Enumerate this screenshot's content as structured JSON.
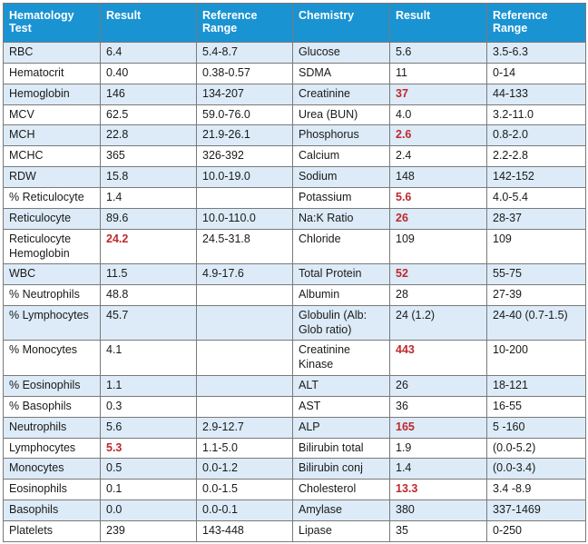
{
  "headers": {
    "hem_test": "Hematology Test",
    "hem_result": "Result",
    "hem_ref": "Reference Range",
    "chem_test": "Chemistry",
    "chem_result": "Result",
    "chem_ref": "Reference Range"
  },
  "rows": [
    {
      "hem": {
        "test": "RBC",
        "result": "6.4",
        "ref": "5.4-8.7"
      },
      "chem": {
        "test": "Glucose",
        "result": "5.6",
        "ref": "3.5-6.3"
      }
    },
    {
      "hem": {
        "test": "Hematocrit",
        "result": "0.40",
        "ref": "0.38-0.57"
      },
      "chem": {
        "test": "SDMA",
        "result": "11",
        "ref": "0-14"
      }
    },
    {
      "hem": {
        "test": "Hemoglobin",
        "result": "146",
        "ref": "134-207"
      },
      "chem": {
        "test": "Creatinine",
        "result": "37",
        "ref": "44-133",
        "abnormal": true
      }
    },
    {
      "hem": {
        "test": "MCV",
        "result": "62.5",
        "ref": "59.0-76.0"
      },
      "chem": {
        "test": "Urea (BUN)",
        "result": "4.0",
        "ref": "3.2-11.0"
      }
    },
    {
      "hem": {
        "test": "MCH",
        "result": "22.8",
        "ref": "21.9-26.1"
      },
      "chem": {
        "test": "Phosphorus",
        "result": "2.6",
        "ref": "0.8-2.0",
        "abnormal": true
      }
    },
    {
      "hem": {
        "test": "MCHC",
        "result": "365",
        "ref": "326-392"
      },
      "chem": {
        "test": "Calcium",
        "result": "2.4",
        "ref": "2.2-2.8"
      }
    },
    {
      "hem": {
        "test": "RDW",
        "result": "15.8",
        "ref": "10.0-19.0"
      },
      "chem": {
        "test": "Sodium",
        "result": "148",
        "ref": "142-152"
      }
    },
    {
      "hem": {
        "test": "% Reticulocyte",
        "result": "1.4",
        "ref": ""
      },
      "chem": {
        "test": "Potassium",
        "result": "5.6",
        "ref": "4.0-5.4",
        "abnormal": true
      }
    },
    {
      "hem": {
        "test": "Reticulocyte",
        "result": "89.6",
        "ref": "10.0-110.0"
      },
      "chem": {
        "test": "Na:K Ratio",
        "result": "26",
        "ref": "28-37",
        "abnormal": true
      }
    },
    {
      "hem": {
        "test": "Reticulocyte Hemoglobin",
        "result": "24.2",
        "ref": "24.5-31.8",
        "abnormal": true
      },
      "chem": {
        "test": "Chloride",
        "result": "109",
        "ref": "109"
      }
    },
    {
      "hem": {
        "test": "WBC",
        "result": "11.5",
        "ref": "4.9-17.6"
      },
      "chem": {
        "test": "Total Protein",
        "result": "52",
        "ref": "55-75",
        "abnormal": true
      }
    },
    {
      "hem": {
        "test": "% Neutrophils",
        "result": "48.8",
        "ref": ""
      },
      "chem": {
        "test": "Albumin",
        "result": "28",
        "ref": "27-39"
      }
    },
    {
      "hem": {
        "test": "% Lymphocytes",
        "result": "45.7",
        "ref": ""
      },
      "chem": {
        "test": "Globulin (Alb: Glob ratio)",
        "result": "24 (1.2)",
        "ref": "24-40 (0.7-1.5)"
      }
    },
    {
      "hem": {
        "test": "% Monocytes",
        "result": "4.1",
        "ref": ""
      },
      "chem": {
        "test": "Creatinine Kinase",
        "result": "443",
        "ref": "10-200",
        "abnormal": true
      }
    },
    {
      "hem": {
        "test": "% Eosinophils",
        "result": "1.1",
        "ref": ""
      },
      "chem": {
        "test": "ALT",
        "result": "26",
        "ref": "18-121"
      }
    },
    {
      "hem": {
        "test": "% Basophils",
        "result": "0.3",
        "ref": ""
      },
      "chem": {
        "test": "AST",
        "result": "36",
        "ref": "16-55"
      }
    },
    {
      "hem": {
        "test": "Neutrophils",
        "result": "5.6",
        "ref": "2.9-12.7"
      },
      "chem": {
        "test": "ALP",
        "result": "165",
        "ref": "5 -160",
        "abnormal": true
      }
    },
    {
      "hem": {
        "test": "Lymphocytes",
        "result": "5.3",
        "ref": "1.1-5.0",
        "abnormal": true
      },
      "chem": {
        "test": "Bilirubin total",
        "result": "1.9",
        "ref": "(0.0-5.2)"
      }
    },
    {
      "hem": {
        "test": "Monocytes",
        "result": "0.5",
        "ref": "0.0-1.2"
      },
      "chem": {
        "test": "Bilirubin conj",
        "result": "1.4",
        "ref": "(0.0-3.4)"
      }
    },
    {
      "hem": {
        "test": "Eosinophils",
        "result": "0.1",
        "ref": "0.0-1.5"
      },
      "chem": {
        "test": "Cholesterol",
        "result": "13.3",
        "ref": "3.4 -8.9",
        "abnormal": true
      }
    },
    {
      "hem": {
        "test": "Basophils",
        "result": "0.0",
        "ref": "0.0-0.1"
      },
      "chem": {
        "test": "Amylase",
        "result": "380",
        "ref": "337-1469"
      }
    },
    {
      "hem": {
        "test": "Platelets",
        "result": "239",
        "ref": "143-448"
      },
      "chem": {
        "test": "Lipase",
        "result": "35",
        "ref": "0-250"
      }
    }
  ],
  "colors": {
    "header_bg": "#1a93d2",
    "row_shade": "#dcebf7",
    "abnormal_text": "#c0282d"
  }
}
